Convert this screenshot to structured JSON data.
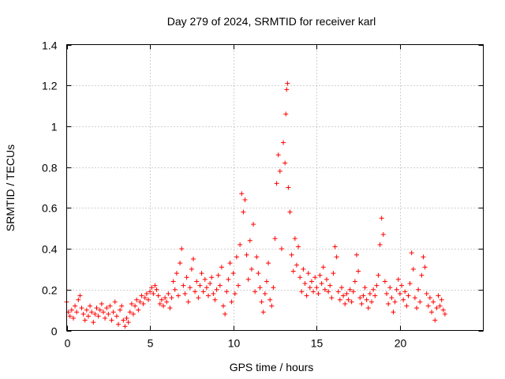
{
  "chart_data": {
    "type": "scatter",
    "title": "Day 279 of 2024, SRMTID for receiver karl",
    "xlabel": "GPS time / hours",
    "ylabel": "SRMTID / TECUs",
    "xlim": [
      0,
      25
    ],
    "ylim": [
      0,
      1.4
    ],
    "xticks": [
      0,
      5,
      10,
      15,
      20
    ],
    "xtick_labels": [
      "0",
      "5",
      "10",
      "15",
      "20"
    ],
    "yticks": [
      0,
      0.2,
      0.4,
      0.6,
      0.8,
      1,
      1.2,
      1.4
    ],
    "ytick_labels": [
      "0",
      "0.2",
      "0.4",
      "0.6",
      "0.8",
      "1",
      "1.2",
      "1.4"
    ],
    "grid": true,
    "marker": "+",
    "color": "#ff0000",
    "series": [
      {
        "name": "SRMTID",
        "points": [
          [
            0.0,
            0.14
          ],
          [
            0.1,
            0.09
          ],
          [
            0.2,
            0.07
          ],
          [
            0.3,
            0.1
          ],
          [
            0.4,
            0.06
          ],
          [
            0.5,
            0.12
          ],
          [
            0.6,
            0.09
          ],
          [
            0.7,
            0.15
          ],
          [
            0.8,
            0.17
          ],
          [
            0.9,
            0.11
          ],
          [
            1.0,
            0.08
          ],
          [
            1.1,
            0.05
          ],
          [
            1.2,
            0.1
          ],
          [
            1.3,
            0.07
          ],
          [
            1.4,
            0.12
          ],
          [
            1.5,
            0.09
          ],
          [
            1.6,
            0.04
          ],
          [
            1.7,
            0.08
          ],
          [
            1.8,
            0.11
          ],
          [
            1.9,
            0.07
          ],
          [
            2.0,
            0.1
          ],
          [
            2.1,
            0.13
          ],
          [
            2.2,
            0.09
          ],
          [
            2.3,
            0.06
          ],
          [
            2.4,
            0.11
          ],
          [
            2.5,
            0.08
          ],
          [
            2.6,
            0.12
          ],
          [
            2.7,
            0.05
          ],
          [
            2.8,
            0.09
          ],
          [
            2.9,
            0.14
          ],
          [
            3.0,
            0.07
          ],
          [
            3.1,
            0.03
          ],
          [
            3.2,
            0.1
          ],
          [
            3.3,
            0.12
          ],
          [
            3.4,
            0.05
          ],
          [
            3.5,
            0.02
          ],
          [
            3.6,
            0.06
          ],
          [
            3.7,
            0.04
          ],
          [
            3.8,
            0.09
          ],
          [
            3.9,
            0.13
          ],
          [
            4.0,
            0.08
          ],
          [
            4.1,
            0.12
          ],
          [
            4.2,
            0.15
          ],
          [
            4.3,
            0.1
          ],
          [
            4.4,
            0.14
          ],
          [
            4.5,
            0.17
          ],
          [
            4.6,
            0.13
          ],
          [
            4.7,
            0.16
          ],
          [
            4.8,
            0.18
          ],
          [
            4.9,
            0.15
          ],
          [
            5.0,
            0.19
          ],
          [
            5.1,
            0.21
          ],
          [
            5.2,
            0.18
          ],
          [
            5.3,
            0.22
          ],
          [
            5.4,
            0.2
          ],
          [
            5.5,
            0.17
          ],
          [
            5.6,
            0.13
          ],
          [
            5.7,
            0.15
          ],
          [
            5.8,
            0.12
          ],
          [
            5.9,
            0.16
          ],
          [
            6.0,
            0.14
          ],
          [
            6.1,
            0.18
          ],
          [
            6.2,
            0.11
          ],
          [
            6.3,
            0.16
          ],
          [
            6.4,
            0.24
          ],
          [
            6.5,
            0.2
          ],
          [
            6.6,
            0.28
          ],
          [
            6.7,
            0.17
          ],
          [
            6.8,
            0.33
          ],
          [
            6.9,
            0.4
          ],
          [
            7.0,
            0.22
          ],
          [
            7.1,
            0.18
          ],
          [
            7.2,
            0.26
          ],
          [
            7.3,
            0.14
          ],
          [
            7.4,
            0.21
          ],
          [
            7.5,
            0.3
          ],
          [
            7.6,
            0.35
          ],
          [
            7.7,
            0.19
          ],
          [
            7.8,
            0.24
          ],
          [
            7.9,
            0.16
          ],
          [
            8.0,
            0.22
          ],
          [
            8.1,
            0.28
          ],
          [
            8.2,
            0.19
          ],
          [
            8.3,
            0.25
          ],
          [
            8.4,
            0.21
          ],
          [
            8.5,
            0.17
          ],
          [
            8.6,
            0.23
          ],
          [
            8.7,
            0.26
          ],
          [
            8.8,
            0.18
          ],
          [
            8.9,
            0.15
          ],
          [
            9.0,
            0.2
          ],
          [
            9.1,
            0.27
          ],
          [
            9.2,
            0.22
          ],
          [
            9.3,
            0.31
          ],
          [
            9.4,
            0.12
          ],
          [
            9.5,
            0.08
          ],
          [
            9.6,
            0.19
          ],
          [
            9.7,
            0.25
          ],
          [
            9.8,
            0.33
          ],
          [
            9.9,
            0.14
          ],
          [
            10.0,
            0.28
          ],
          [
            10.1,
            0.18
          ],
          [
            10.2,
            0.36
          ],
          [
            10.3,
            0.22
          ],
          [
            10.4,
            0.42
          ],
          [
            10.5,
            0.67
          ],
          [
            10.6,
            0.58
          ],
          [
            10.7,
            0.64
          ],
          [
            10.8,
            0.37
          ],
          [
            10.9,
            0.25
          ],
          [
            11.0,
            0.44
          ],
          [
            11.1,
            0.3
          ],
          [
            11.2,
            0.52
          ],
          [
            11.3,
            0.19
          ],
          [
            11.4,
            0.36
          ],
          [
            11.5,
            0.28
          ],
          [
            11.6,
            0.21
          ],
          [
            11.7,
            0.14
          ],
          [
            11.8,
            0.09
          ],
          [
            11.9,
            0.18
          ],
          [
            12.0,
            0.24
          ],
          [
            12.1,
            0.33
          ],
          [
            12.2,
            0.15
          ],
          [
            12.3,
            0.12
          ],
          [
            12.4,
            0.21
          ],
          [
            12.5,
            0.45
          ],
          [
            12.6,
            0.72
          ],
          [
            12.7,
            0.86
          ],
          [
            12.8,
            0.78
          ],
          [
            12.9,
            0.4
          ],
          [
            13.0,
            0.92
          ],
          [
            13.1,
            0.82
          ],
          [
            13.15,
            1.06
          ],
          [
            13.2,
            1.18
          ],
          [
            13.25,
            1.21
          ],
          [
            13.3,
            0.7
          ],
          [
            13.4,
            0.58
          ],
          [
            13.5,
            0.37
          ],
          [
            13.6,
            0.29
          ],
          [
            13.7,
            0.45
          ],
          [
            13.8,
            0.32
          ],
          [
            13.9,
            0.41
          ],
          [
            14.0,
            0.26
          ],
          [
            14.1,
            0.19
          ],
          [
            14.2,
            0.3
          ],
          [
            14.3,
            0.23
          ],
          [
            14.4,
            0.17
          ],
          [
            14.5,
            0.28
          ],
          [
            14.6,
            0.21
          ],
          [
            14.7,
            0.24
          ],
          [
            14.8,
            0.19
          ],
          [
            14.9,
            0.26
          ],
          [
            15.0,
            0.21
          ],
          [
            15.1,
            0.18
          ],
          [
            15.2,
            0.27
          ],
          [
            15.3,
            0.23
          ],
          [
            15.4,
            0.31
          ],
          [
            15.5,
            0.2
          ],
          [
            15.6,
            0.25
          ],
          [
            15.7,
            0.19
          ],
          [
            15.8,
            0.22
          ],
          [
            15.9,
            0.16
          ],
          [
            16.0,
            0.28
          ],
          [
            16.1,
            0.41
          ],
          [
            16.2,
            0.36
          ],
          [
            16.3,
            0.19
          ],
          [
            16.4,
            0.15
          ],
          [
            16.5,
            0.21
          ],
          [
            16.6,
            0.17
          ],
          [
            16.7,
            0.13
          ],
          [
            16.8,
            0.18
          ],
          [
            16.9,
            0.15
          ],
          [
            17.0,
            0.2
          ],
          [
            17.1,
            0.14
          ],
          [
            17.2,
            0.19
          ],
          [
            17.3,
            0.24
          ],
          [
            17.4,
            0.37
          ],
          [
            17.5,
            0.29
          ],
          [
            17.6,
            0.16
          ],
          [
            17.7,
            0.13
          ],
          [
            17.8,
            0.17
          ],
          [
            17.9,
            0.21
          ],
          [
            18.0,
            0.15
          ],
          [
            18.1,
            0.11
          ],
          [
            18.2,
            0.18
          ],
          [
            18.3,
            0.14
          ],
          [
            18.4,
            0.2
          ],
          [
            18.5,
            0.17
          ],
          [
            18.6,
            0.22
          ],
          [
            18.7,
            0.27
          ],
          [
            18.8,
            0.42
          ],
          [
            18.9,
            0.55
          ],
          [
            19.0,
            0.47
          ],
          [
            19.1,
            0.24
          ],
          [
            19.2,
            0.18
          ],
          [
            19.3,
            0.13
          ],
          [
            19.4,
            0.21
          ],
          [
            19.5,
            0.16
          ],
          [
            19.6,
            0.09
          ],
          [
            19.7,
            0.14
          ],
          [
            19.8,
            0.2
          ],
          [
            19.9,
            0.25
          ],
          [
            20.0,
            0.18
          ],
          [
            20.1,
            0.22
          ],
          [
            20.2,
            0.15
          ],
          [
            20.3,
            0.19
          ],
          [
            20.4,
            0.12
          ],
          [
            20.5,
            0.17
          ],
          [
            20.6,
            0.23
          ],
          [
            20.7,
            0.38
          ],
          [
            20.8,
            0.3
          ],
          [
            20.9,
            0.16
          ],
          [
            21.0,
            0.11
          ],
          [
            21.1,
            0.2
          ],
          [
            21.2,
            0.14
          ],
          [
            21.3,
            0.27
          ],
          [
            21.4,
            0.36
          ],
          [
            21.5,
            0.31
          ],
          [
            21.6,
            0.18
          ],
          [
            21.7,
            0.12
          ],
          [
            21.8,
            0.16
          ],
          [
            21.9,
            0.09
          ],
          [
            22.0,
            0.14
          ],
          [
            22.1,
            0.05
          ],
          [
            22.2,
            0.11
          ],
          [
            22.3,
            0.17
          ],
          [
            22.4,
            0.12
          ],
          [
            22.5,
            0.15
          ],
          [
            22.6,
            0.1
          ],
          [
            22.7,
            0.08
          ]
        ]
      }
    ]
  }
}
